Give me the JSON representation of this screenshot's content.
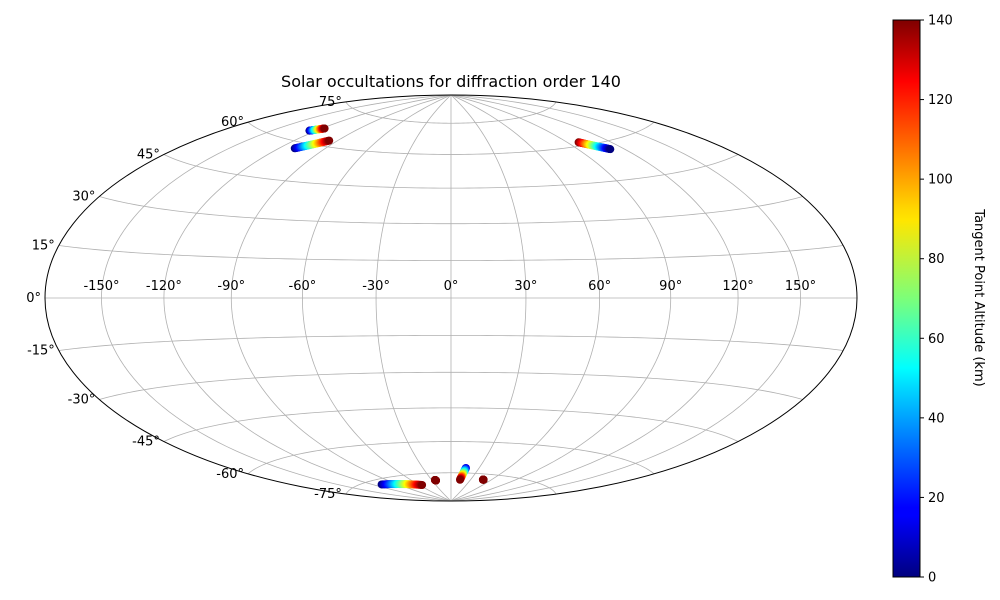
{
  "chart_data": {
    "type": "scatter",
    "projection": "hammer",
    "title": "Solar occultations for diffraction order 140",
    "grid": true,
    "lon_ticks": [
      -150,
      -120,
      -90,
      -60,
      -30,
      0,
      30,
      60,
      90,
      120,
      150
    ],
    "lon_tick_labels": [
      "-150°",
      "-120°",
      "-90°",
      "-60°",
      "-30°",
      "0°",
      "30°",
      "60°",
      "90°",
      "120°",
      "150°"
    ],
    "lat_ticks": [
      -75,
      -60,
      -45,
      -30,
      -15,
      0,
      15,
      30,
      45,
      60,
      75
    ],
    "lat_tick_labels": [
      "-75°",
      "-60°",
      "-45°",
      "-30°",
      "-15°",
      "0°",
      "15°",
      "30°",
      "45°",
      "60°",
      "75°"
    ],
    "colorbar": {
      "label": "Tangent Point Altitude (km)",
      "min": 0,
      "max": 140,
      "ticks": [
        0,
        20,
        40,
        60,
        80,
        100,
        120,
        140
      ],
      "colormap": "jet"
    },
    "series": [
      {
        "lon_start": -125,
        "lat_start": 64.5,
        "lon_end": -118,
        "lat_end": 66.5,
        "alt_start": 0,
        "alt_end": 140
      },
      {
        "lon_start": -110,
        "lat_start": 57.5,
        "lon_end": -96,
        "lat_end": 62.5,
        "alt_start": 0,
        "alt_end": 140
      },
      {
        "lon_start": 98,
        "lat_start": 61.5,
        "lon_end": 111,
        "lat_end": 57,
        "alt_start": 140,
        "alt_end": 0
      },
      {
        "lon_start": -110,
        "lat_start": -77.2,
        "lon_end": -55,
        "lat_end": -80.5,
        "alt_start": 0,
        "alt_end": 140
      },
      {
        "lon_start": -25,
        "lat_start": -78.5,
        "lon_end": -24,
        "lat_end": -78.8,
        "alt_start": 140,
        "alt_end": 140
      },
      {
        "lon_start": 16,
        "lat_start": -72.5,
        "lon_end": 14,
        "lat_end": -78.5,
        "alt_start": 10,
        "alt_end": 140
      },
      {
        "lon_start": 48,
        "lat_start": -77.8,
        "lon_end": 49,
        "lat_end": -77.8,
        "alt_start": 140,
        "alt_end": 140
      }
    ]
  }
}
